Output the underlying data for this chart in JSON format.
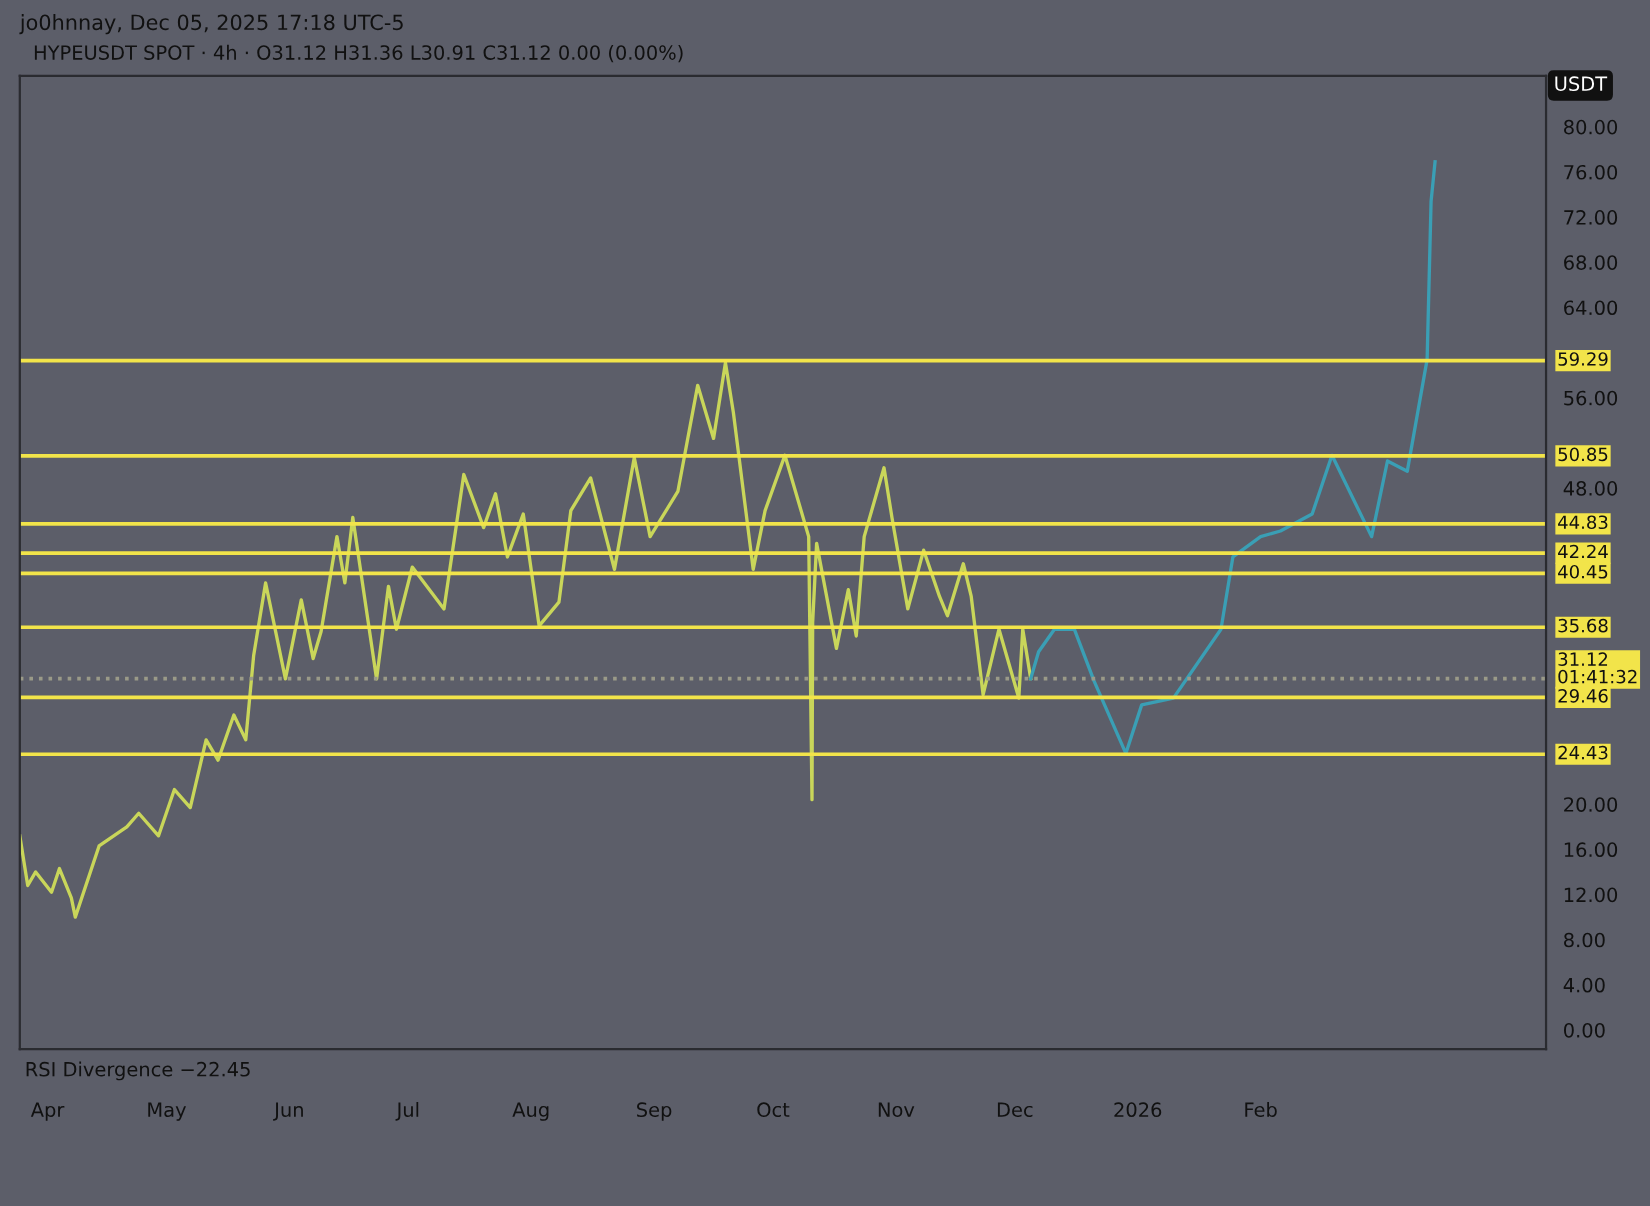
{
  "chart_data": {
    "type": "line",
    "title": "jo0hnnay, Dec 05, 2025 17:18 UTC-5",
    "subtitle": "HYPEUSDT SPOT · 4h · O31.12 H31.36 L30.91 C31.12 0.00 (0.00%)",
    "ylabel": "USDT",
    "annotations": [
      "RSI Divergence −22.45"
    ],
    "xlim": [
      "2025-03-25",
      "2026-04-14"
    ],
    "xticks": [
      {
        "value": "2025-04-01",
        "label": "Apr"
      },
      {
        "value": "2025-05-01",
        "label": "May"
      },
      {
        "value": "2025-06-01",
        "label": "Jun"
      },
      {
        "value": "2025-07-01",
        "label": "Jul"
      },
      {
        "value": "2025-08-01",
        "label": "Aug"
      },
      {
        "value": "2025-09-01",
        "label": "Sep"
      },
      {
        "value": "2025-10-01",
        "label": "Oct"
      },
      {
        "value": "2025-11-01",
        "label": "Nov"
      },
      {
        "value": "2025-12-01",
        "label": "Dec"
      },
      {
        "value": "2026-01-01",
        "label": "2026"
      },
      {
        "value": "2026-02-01",
        "label": "Feb"
      }
    ],
    "ylim": [
      -1.7,
      84.5
    ],
    "yticks": [
      {
        "value": 0,
        "label": "0.00"
      },
      {
        "value": 4,
        "label": "4.00"
      },
      {
        "value": 8,
        "label": "8.00"
      },
      {
        "value": 12,
        "label": "12.00"
      },
      {
        "value": 16,
        "label": "16.00"
      },
      {
        "value": 20,
        "label": "20.00"
      },
      {
        "value": 48,
        "label": "48.00"
      },
      {
        "value": 56,
        "label": "56.00"
      },
      {
        "value": 64,
        "label": "64.00"
      },
      {
        "value": 68,
        "label": "68.00"
      },
      {
        "value": 72,
        "label": "72.00"
      },
      {
        "value": 76,
        "label": "76.00"
      },
      {
        "value": 80,
        "label": "80.00"
      }
    ],
    "grid": false,
    "legend": false,
    "series": [
      {
        "color": "#c9d65a",
        "x": [
          "2025-03-25",
          "2025-03-27",
          "2025-03-29",
          "2025-04-02",
          "2025-04-04",
          "2025-04-07",
          "2025-04-08",
          "2025-04-14",
          "2025-04-21",
          "2025-04-24",
          "2025-04-29",
          "2025-05-03",
          "2025-05-07",
          "2025-05-11",
          "2025-05-14",
          "2025-05-18",
          "2025-05-21",
          "2025-05-23",
          "2025-05-26",
          "2025-05-31",
          "2025-06-04",
          "2025-06-07",
          "2025-06-09",
          "2025-06-13",
          "2025-06-15",
          "2025-06-17",
          "2025-06-23",
          "2025-06-26",
          "2025-06-28",
          "2025-07-02",
          "2025-07-10",
          "2025-07-15",
          "2025-07-20",
          "2025-07-23",
          "2025-07-26",
          "2025-07-30",
          "2025-08-03",
          "2025-08-08",
          "2025-08-11",
          "2025-08-16",
          "2025-08-22",
          "2025-08-27",
          "2025-08-31",
          "2025-09-07",
          "2025-09-12",
          "2025-09-16",
          "2025-09-19",
          "2025-09-21",
          "2025-09-26",
          "2025-09-29",
          "2025-10-04",
          "2025-10-10",
          "2025-10-10T20:00",
          "2025-10-11",
          "2025-10-12",
          "2025-10-17",
          "2025-10-20",
          "2025-10-22",
          "2025-10-24",
          "2025-10-29",
          "2025-10-31",
          "2025-11-04",
          "2025-11-08",
          "2025-11-12",
          "2025-11-14",
          "2025-11-18",
          "2025-11-20",
          "2025-11-23",
          "2025-11-27",
          "2025-12-02",
          "2025-12-03",
          "2025-12-05"
        ],
        "values": [
          17.2,
          12.8,
          14.0,
          12.2,
          14.3,
          11.7,
          10.0,
          16.3,
          18.0,
          19.2,
          17.2,
          21.3,
          19.7,
          25.7,
          23.9,
          27.9,
          25.7,
          33.2,
          39.6,
          31.1,
          38.1,
          32.9,
          35.3,
          43.7,
          39.6,
          45.4,
          31.1,
          39.3,
          35.5,
          41.0,
          37.3,
          49.2,
          44.5,
          47.5,
          41.9,
          45.7,
          35.8,
          37.9,
          46.0,
          48.9,
          40.8,
          50.7,
          43.7,
          47.7,
          57.1,
          52.4,
          59.1,
          54.7,
          40.8,
          46.0,
          50.9,
          43.7,
          20.4,
          36.1,
          43.1,
          33.8,
          39.0,
          34.9,
          43.7,
          49.8,
          45.4,
          37.3,
          42.5,
          38.4,
          36.7,
          41.3,
          38.4,
          29.7,
          35.5,
          29.4,
          35.5,
          31.12
        ]
      },
      {
        "color": "#3a9fb5",
        "x": [
          "2025-12-05",
          "2025-12-07",
          "2025-12-11",
          "2025-12-16",
          "2025-12-21",
          "2025-12-29",
          "2026-01-02",
          "2026-01-10",
          "2026-01-22",
          "2026-01-25",
          "2026-02-01",
          "2026-02-06",
          "2026-02-14",
          "2026-02-19",
          "2026-03-01",
          "2026-03-05",
          "2026-03-10",
          "2026-03-15",
          "2026-03-16",
          "2026-03-17"
        ],
        "values": [
          31.12,
          33.5,
          35.5,
          35.5,
          30.9,
          24.5,
          28.8,
          29.4,
          35.5,
          41.9,
          43.7,
          44.2,
          45.7,
          50.9,
          43.7,
          50.4,
          49.5,
          59.4,
          73.4,
          76.9
        ]
      }
    ],
    "ref_lines": [
      {
        "axis": "y",
        "value": 59.29,
        "label": "59.29",
        "color": "#f2e44a"
      },
      {
        "axis": "y",
        "value": 50.85,
        "label": "50.85",
        "color": "#f2e44a"
      },
      {
        "axis": "y",
        "value": 44.83,
        "label": "44.83",
        "color": "#f2e44a"
      },
      {
        "axis": "y",
        "value": 42.24,
        "label": "42.24",
        "color": "#f2e44a"
      },
      {
        "axis": "y",
        "value": 40.45,
        "label": "40.45",
        "color": "#f2e44a"
      },
      {
        "axis": "y",
        "value": 35.68,
        "label": "35.68",
        "color": "#f2e44a"
      },
      {
        "axis": "y",
        "value": 31.12,
        "label": "31.12\n01:41:32",
        "color": "#9a9a88",
        "line_style": "dotted"
      },
      {
        "axis": "y",
        "value": 29.46,
        "label": "29.46",
        "color": "#f2e44a"
      },
      {
        "axis": "y",
        "value": 24.43,
        "label": "24.43",
        "color": "#f2e44a"
      }
    ]
  }
}
